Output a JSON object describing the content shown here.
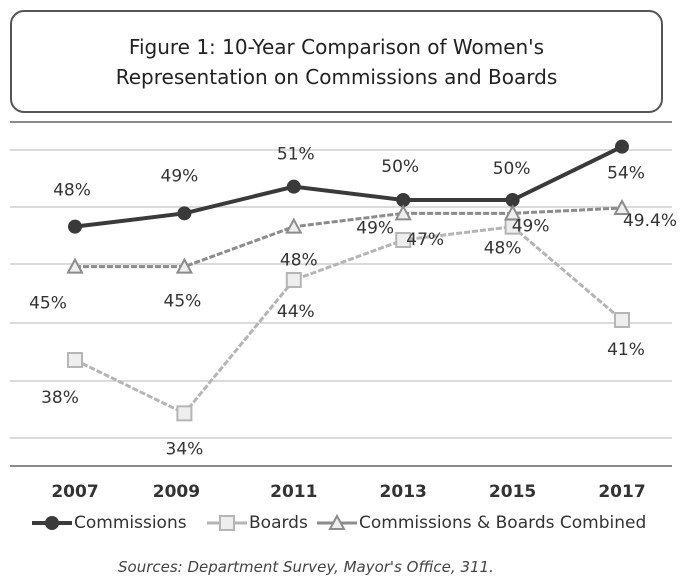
{
  "chart_data": {
    "type": "line",
    "title": "Figure 1: 10-Year Comparison of Women's Representation on Commissions and Boards",
    "categories": [
      "2007",
      "2009",
      "2011",
      "2013",
      "2015",
      "2017"
    ],
    "series": [
      {
        "name": "Commissions",
        "color": "#3a3a3a",
        "marker": "circle",
        "values": [
          48,
          49,
          51,
          50,
          50,
          54
        ],
        "value_labels": [
          "48%",
          "49%",
          "51%",
          "50%",
          "50%",
          "54%"
        ]
      },
      {
        "name": "Boards",
        "color": "#b5b5b5",
        "marker": "square",
        "values": [
          38,
          34,
          44,
          47,
          48,
          41
        ],
        "value_labels": [
          "38%",
          "34%",
          "44%",
          "47%",
          "48%",
          "41%"
        ]
      },
      {
        "name": "Commissions & Boards Combined",
        "color": "#8c8c8c",
        "marker": "triangle",
        "values": [
          45,
          45,
          48,
          49,
          49,
          49.4
        ],
        "value_labels": [
          "45%",
          "45%",
          "48%",
          "49%",
          "49%",
          "49.4%"
        ]
      }
    ],
    "ylim": [
      32,
      56
    ],
    "source": "Sources: Department Survey, Mayor's Office, 311."
  }
}
